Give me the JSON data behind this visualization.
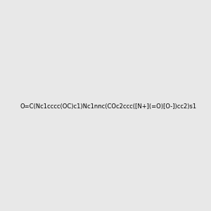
{
  "smiles": "O=C(Nc1cccc(OC)c1)Nc1nnc(COc2ccc([N+](=O)[O-])cc2)s1",
  "title": "",
  "bg_color": "#e8e8e8",
  "fig_width": 3.0,
  "fig_height": 3.0,
  "dpi": 100,
  "atom_colors": {
    "N": "#0000FF",
    "O": "#FF0000",
    "S": "#CCCC00",
    "C": "#000000",
    "H": "#808080"
  }
}
